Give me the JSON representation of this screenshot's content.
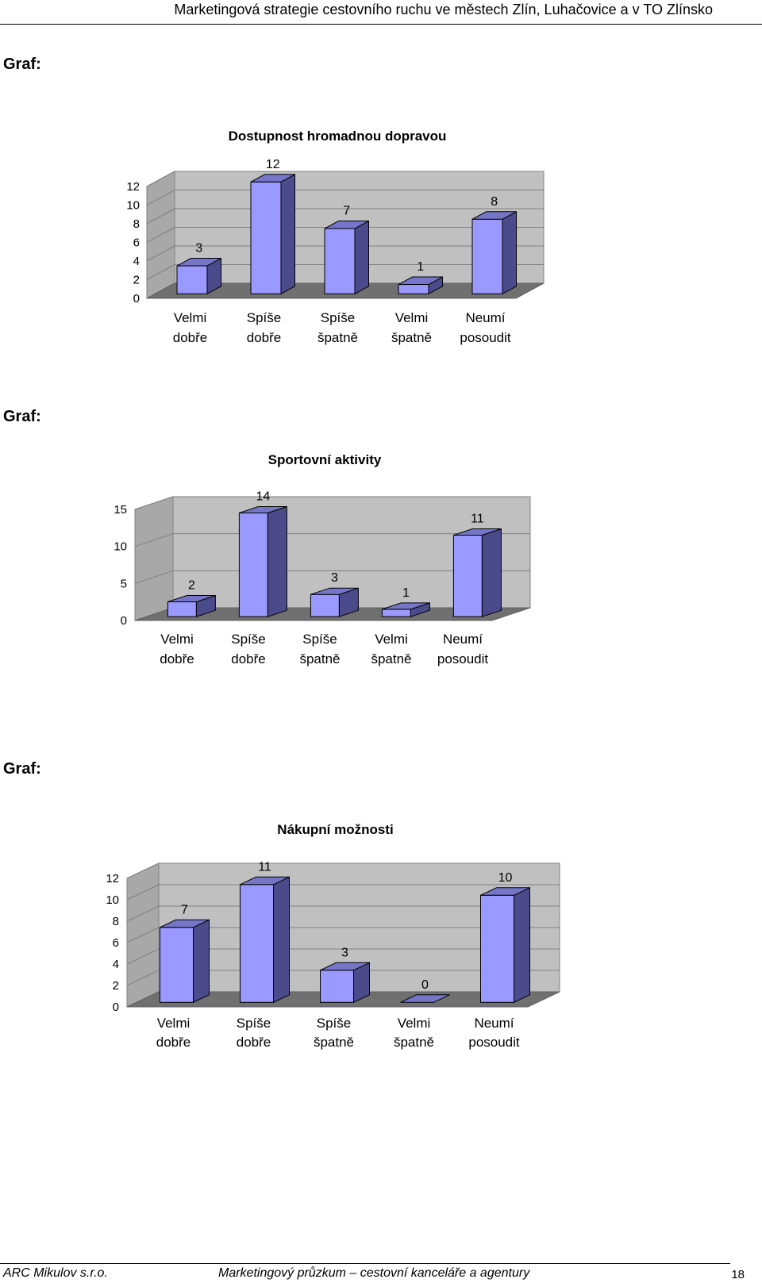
{
  "header": {
    "title": "Marketingová strategie cestovního ruchu ve městech Zlín, Luhačovice a v TO Zlínsko"
  },
  "graf_label": "Graf:",
  "chart_data": [
    {
      "type": "bar",
      "title": "Dostupnost hromadnou dopravou",
      "categories": [
        [
          "Velmi",
          "dobře"
        ],
        [
          "Spíše",
          "dobře"
        ],
        [
          "Spíše",
          "špatně"
        ],
        [
          "Velmi",
          "špatně"
        ],
        [
          "Neumí",
          "posoudit"
        ]
      ],
      "values": [
        3,
        12,
        7,
        1,
        8
      ],
      "ylim": [
        0,
        12
      ],
      "yticks": [
        0,
        2,
        4,
        6,
        8,
        10,
        12
      ],
      "bar_color": "#9999ff",
      "wall_color": "#c0c0c0"
    },
    {
      "type": "bar",
      "title": "Sportovní aktivity",
      "categories": [
        [
          "Velmi",
          "dobře"
        ],
        [
          "Spíše",
          "dobře"
        ],
        [
          "Spíše",
          "špatně"
        ],
        [
          "Velmi",
          "špatně"
        ],
        [
          "Neumí",
          "posoudit"
        ]
      ],
      "values": [
        2,
        14,
        3,
        1,
        11
      ],
      "ylim": [
        0,
        15
      ],
      "yticks": [
        0,
        5,
        10,
        15
      ],
      "bar_color": "#9999ff",
      "wall_color": "#c0c0c0"
    },
    {
      "type": "bar",
      "title": "Nákupní možnosti",
      "categories": [
        [
          "Velmi",
          "dobře"
        ],
        [
          "Spíše",
          "dobře"
        ],
        [
          "Spíše",
          "špatně"
        ],
        [
          "Velmi",
          "špatně"
        ],
        [
          "Neumí",
          "posoudit"
        ]
      ],
      "values": [
        7,
        11,
        3,
        0,
        10
      ],
      "ylim": [
        0,
        12
      ],
      "yticks": [
        0,
        2,
        4,
        6,
        8,
        10,
        12
      ],
      "bar_color": "#9999ff",
      "wall_color": "#c0c0c0"
    }
  ],
  "footer": {
    "company": "ARC Mikulov s.r.o.",
    "subtitle": "Marketingový průzkum – cestovní kanceláře a agentury",
    "page_number": "18"
  }
}
